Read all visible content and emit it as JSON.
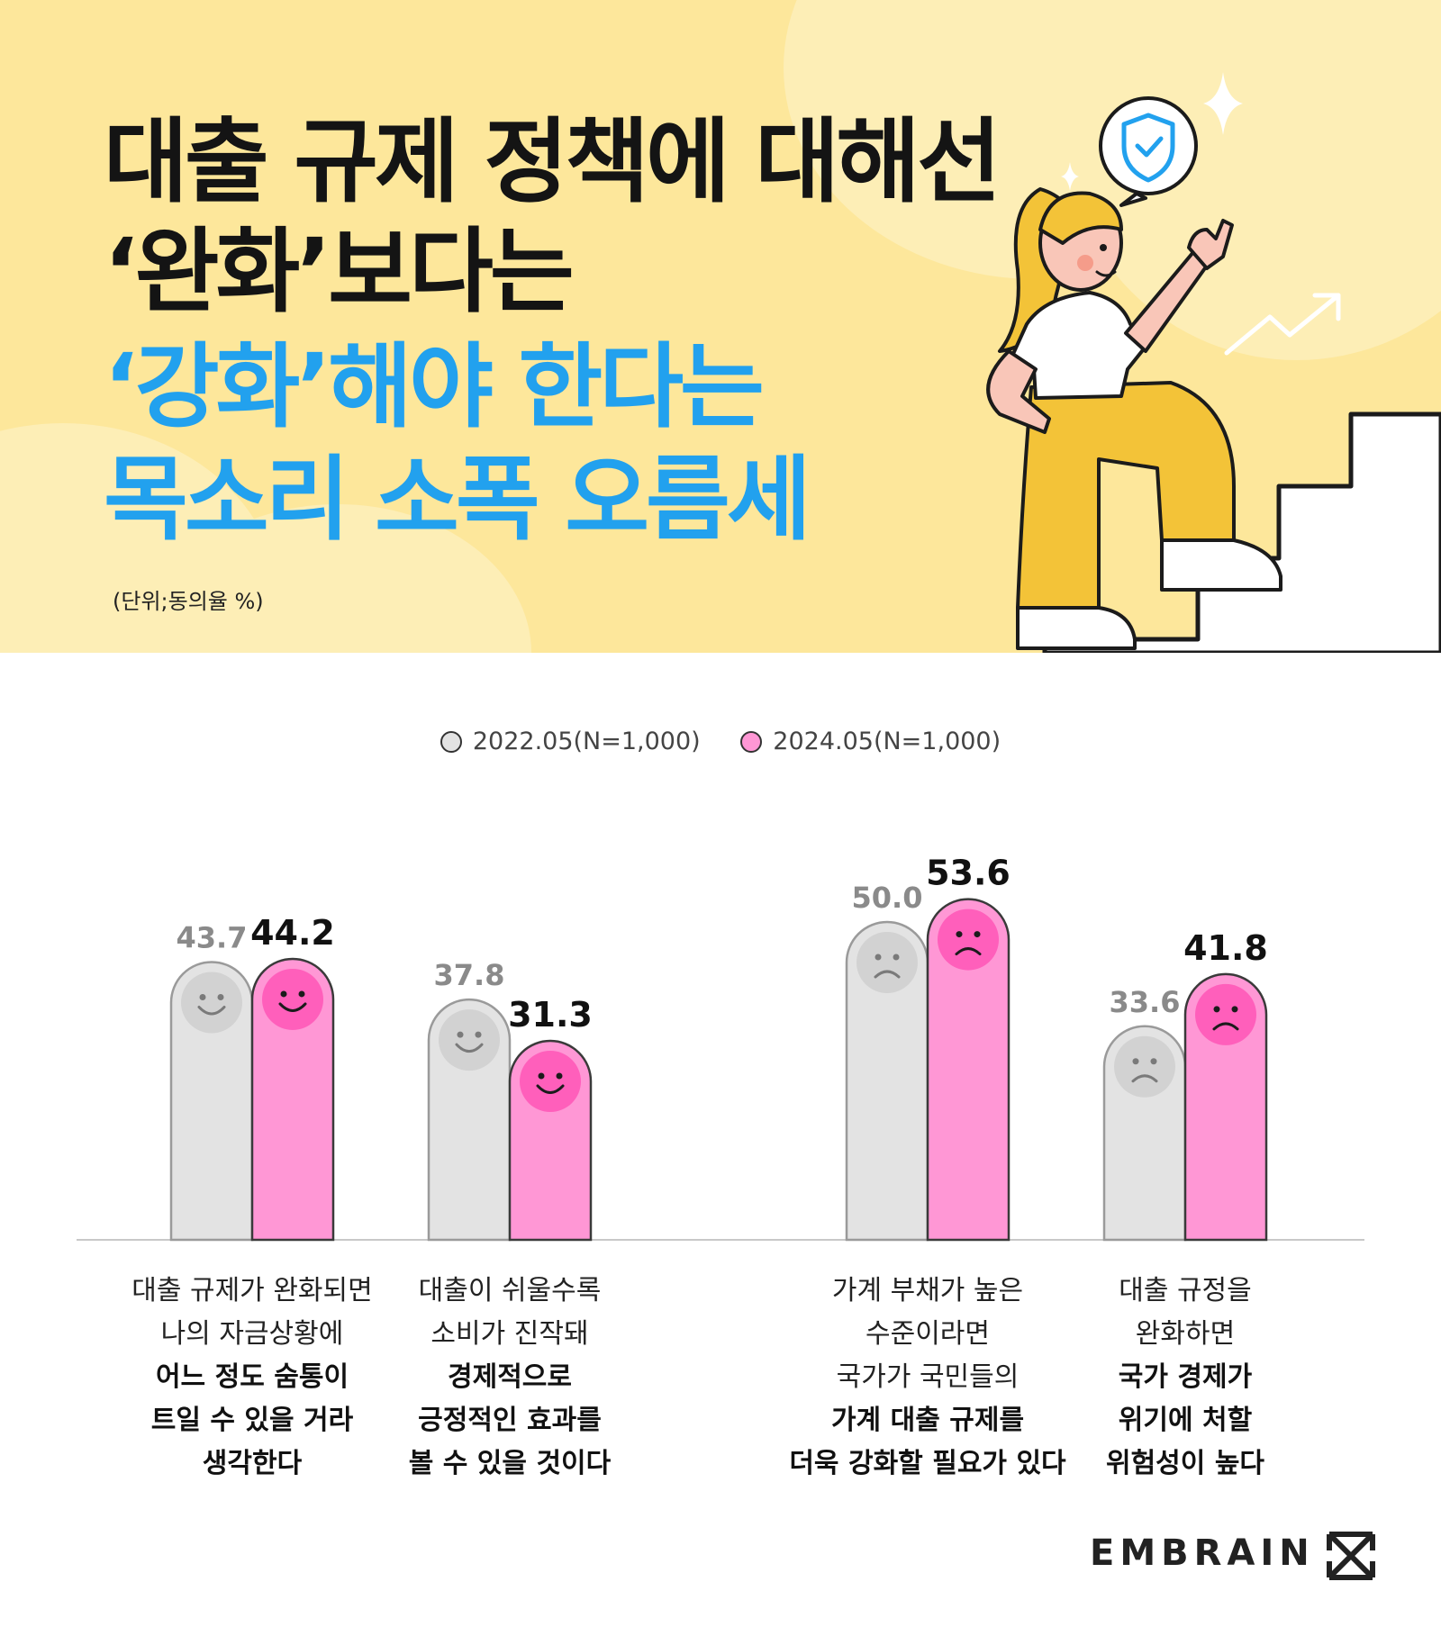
{
  "header": {
    "title_lines": [
      "대출 규제 정책에 대해선",
      "‘완화’보다는",
      "‘강화’해야 한다는",
      "목소리 소폭 오름세"
    ],
    "unit_note": "(단위;동의율 %)",
    "colors": {
      "background": "#fde79b",
      "title_dark": "#141414",
      "title_blue": "#22a1ee"
    },
    "illustration_icon": "shield-check-icon"
  },
  "chart_data": {
    "type": "bar",
    "ylim": [
      0,
      60
    ],
    "series": [
      {
        "name": "2022.05(N=1,000)",
        "color": "#e3e3e3",
        "values": [
          43.7,
          37.8,
          50.0,
          33.6
        ]
      },
      {
        "name": "2024.05(N=1,000)",
        "color": "#ff97d5",
        "values": [
          44.2,
          31.3,
          53.6,
          41.8
        ]
      }
    ],
    "categories": [
      {
        "lines": [
          "대출 규제가 완화되면",
          "나의 자금상황에",
          "어느 정도 숨통이",
          "트일 수 있을 거라",
          "생각한다"
        ],
        "bold_from": 2,
        "face": "smile"
      },
      {
        "lines": [
          "대출이 쉬울수록",
          "소비가 진작돼",
          "경제적으로",
          "긍정적인 효과를",
          "볼 수 있을 것이다"
        ],
        "bold_from": 2,
        "face": "smile"
      },
      {
        "lines": [
          "가계 부채가 높은",
          "수준이라면",
          "국가가 국민들의",
          "가계 대출 규제를",
          "더욱 강화할 필요가 있다"
        ],
        "bold_from": 3,
        "face": "frown"
      },
      {
        "lines": [
          "대출 규정을",
          "완화하면",
          "국가 경제가",
          "위기에 처할",
          "위험성이 높다"
        ],
        "bold_from": 2,
        "face": "frown"
      }
    ],
    "value_labels": [
      [
        "43.7",
        "44.2"
      ],
      [
        "37.8",
        "31.3"
      ],
      [
        "50.0",
        "53.6"
      ],
      [
        "33.6",
        "41.8"
      ]
    ],
    "legend_position": "top-center",
    "grid": false
  },
  "footer": {
    "brand": "EMBRAIN"
  }
}
